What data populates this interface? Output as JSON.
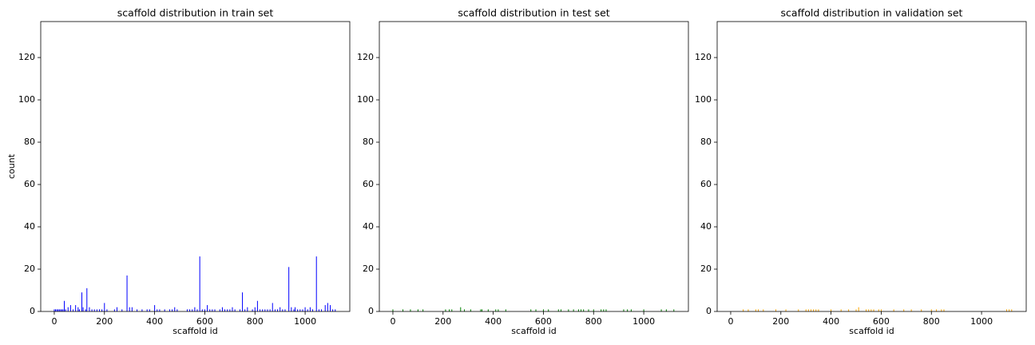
{
  "chart_data": [
    {
      "type": "bar",
      "title": "scaffold distribution in train set",
      "xlabel": "scaffold id",
      "ylabel": "count",
      "xlim": [
        -54,
        1178
      ],
      "ylim": [
        0,
        137
      ],
      "xticks": [
        0,
        200,
        400,
        600,
        800,
        1000
      ],
      "yticks": [
        0,
        20,
        40,
        60,
        80,
        100,
        120
      ],
      "color": "#0000ff",
      "x": [
        0,
        5,
        10,
        15,
        20,
        25,
        30,
        35,
        40,
        45,
        55,
        65,
        75,
        85,
        95,
        100,
        110,
        115,
        125,
        130,
        140,
        150,
        160,
        170,
        180,
        190,
        200,
        210,
        240,
        250,
        270,
        290,
        300,
        310,
        330,
        350,
        370,
        380,
        400,
        410,
        420,
        440,
        460,
        470,
        480,
        490,
        530,
        540,
        550,
        560,
        570,
        580,
        590,
        600,
        610,
        620,
        630,
        640,
        660,
        670,
        680,
        690,
        700,
        710,
        720,
        740,
        750,
        760,
        770,
        790,
        800,
        810,
        820,
        830,
        840,
        850,
        860,
        870,
        880,
        890,
        900,
        910,
        920,
        935,
        945,
        955,
        960,
        970,
        980,
        990,
        1000,
        1010,
        1020,
        1030,
        1045,
        1055,
        1065,
        1080,
        1090,
        1100,
        1110,
        1120
      ],
      "values": [
        1,
        1,
        1,
        1,
        1,
        1,
        1,
        1,
        5,
        1,
        2,
        3,
        1,
        3,
        2,
        1,
        9,
        2,
        1,
        11,
        2,
        1,
        1,
        1,
        1,
        1,
        4,
        1,
        1,
        2,
        1,
        17,
        2,
        2,
        1,
        1,
        1,
        1,
        3,
        1,
        1,
        1,
        1,
        1,
        2,
        1,
        1,
        1,
        1,
        2,
        1,
        26,
        1,
        1,
        3,
        1,
        1,
        1,
        1,
        2,
        1,
        1,
        1,
        2,
        1,
        1,
        9,
        1,
        2,
        1,
        2,
        5,
        1,
        1,
        1,
        1,
        1,
        4,
        1,
        1,
        2,
        1,
        1,
        21,
        2,
        1,
        2,
        1,
        1,
        1,
        2,
        1,
        2,
        1,
        26,
        1,
        1,
        3,
        4,
        3,
        1,
        1
      ]
    },
    {
      "type": "bar",
      "title": "scaffold distribution in test set",
      "xlabel": "scaffold id",
      "xlim": [
        -54,
        1178
      ],
      "ylim": [
        0,
        137
      ],
      "xticks": [
        0,
        200,
        400,
        600,
        800,
        1000
      ],
      "yticks": [
        0,
        20,
        40,
        60,
        80,
        100,
        120
      ],
      "color": "#008000",
      "x": [
        0,
        40,
        70,
        100,
        120,
        210,
        225,
        235,
        270,
        285,
        310,
        350,
        355,
        380,
        410,
        420,
        450,
        550,
        570,
        600,
        620,
        660,
        670,
        700,
        720,
        740,
        750,
        760,
        780,
        800,
        830,
        840,
        850,
        920,
        935,
        950,
        1000,
        1070,
        1090,
        1120
      ],
      "values": [
        1,
        1,
        1,
        1,
        1,
        1,
        1,
        1,
        2,
        1,
        1,
        1,
        1,
        1,
        1,
        1,
        1,
        1,
        1,
        1,
        1,
        1,
        1,
        1,
        1,
        1,
        1,
        1,
        1,
        1,
        1,
        1,
        1,
        1,
        1,
        1,
        1,
        1,
        1,
        1
      ]
    },
    {
      "type": "bar",
      "title": "scaffold distribution in validation set",
      "xlabel": "scaffold id",
      "xlim": [
        -54,
        1178
      ],
      "ylim": [
        0,
        137
      ],
      "xticks": [
        0,
        200,
        400,
        600,
        800,
        1000
      ],
      "yticks": [
        0,
        20,
        40,
        60,
        80,
        100,
        120
      ],
      "color": "#ffa500",
      "x": [
        50,
        70,
        100,
        110,
        130,
        180,
        220,
        270,
        300,
        310,
        320,
        330,
        340,
        350,
        400,
        440,
        470,
        500,
        510,
        540,
        550,
        560,
        570,
        590,
        600,
        650,
        690,
        720,
        760,
        800,
        820,
        840,
        850,
        1100,
        1110,
        1120
      ],
      "values": [
        1,
        1,
        1,
        1,
        1,
        1,
        1,
        1,
        1,
        1,
        1,
        1,
        1,
        1,
        1,
        1,
        1,
        1,
        2,
        1,
        1,
        1,
        1,
        1,
        1,
        1,
        1,
        1,
        1,
        1,
        1,
        1,
        1,
        1,
        1,
        1
      ]
    }
  ]
}
